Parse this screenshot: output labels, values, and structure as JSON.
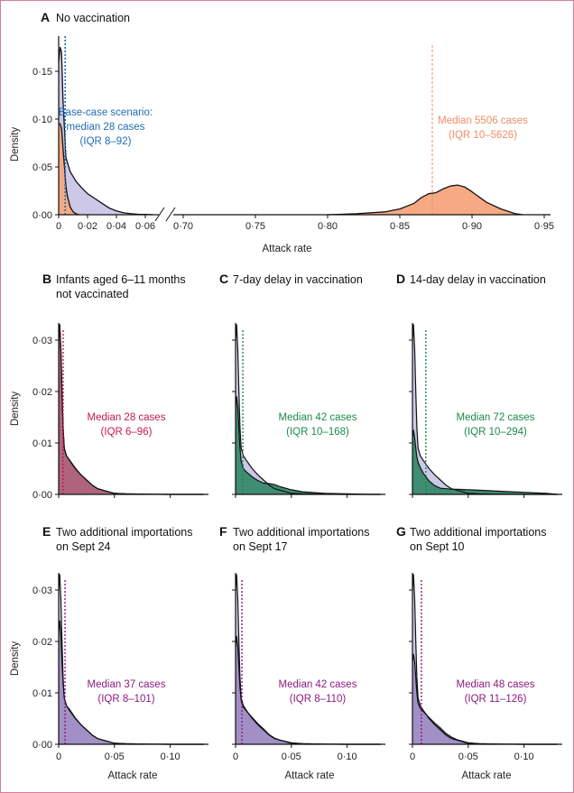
{
  "chart_data": [
    {
      "panel": "A",
      "type": "area",
      "letter": "A",
      "title_lines": [
        "No vaccination"
      ],
      "xlabel": "Attack rate",
      "ylabel": "Density",
      "yticks": [
        0,
        0.05,
        0.1,
        0.15
      ],
      "ytick_labels": [
        "0·00",
        "0·05",
        "0·10",
        "0·15"
      ],
      "xticks": [
        0,
        0.02,
        0.04,
        0.06,
        0.7,
        0.75,
        0.8,
        0.85,
        0.9,
        0.95
      ],
      "xtick_labels": [
        "0",
        "0·02",
        "0·04",
        "0·06",
        "0·70",
        "0·75",
        "0·80",
        "0·85",
        "0·90",
        "0·95"
      ],
      "axis_break": [
        0.065,
        0.69
      ],
      "ylim": [
        0,
        0.18
      ],
      "base": {
        "name": "Base-case scenario",
        "median": 0.0045,
        "label_lines": [
          "Base-case scenario:",
          "median 28 cases",
          "(IQR 8–92)"
        ],
        "x": [
          0,
          0.001,
          0.002,
          0.003,
          0.005,
          0.008,
          0.012,
          0.016,
          0.02,
          0.025,
          0.03,
          0.035,
          0.04,
          0.045,
          0.05,
          0.055,
          0.06,
          0.065
        ],
        "density": [
          0.16,
          0.175,
          0.17,
          0.12,
          0.06,
          0.045,
          0.035,
          0.028,
          0.022,
          0.017,
          0.012,
          0.007,
          0.004,
          0.002,
          0.001,
          0.0005,
          0.0003,
          0
        ]
      },
      "scenario": {
        "name": "No vaccination",
        "median": 0.8725,
        "label_lines": [
          "Median 5506 cases",
          "(IQR 10–5626)"
        ],
        "x": [
          0,
          0.001,
          0.002,
          0.003,
          0.004,
          0.005,
          0.006,
          0.008,
          0.01,
          0.012,
          0.014
        ],
        "density": [
          0.095,
          0.095,
          0.09,
          0.07,
          0.05,
          0.03,
          0.02,
          0.008,
          0.003,
          0.001,
          0
        ],
        "x_high": [
          0.8,
          0.82,
          0.84,
          0.85,
          0.86,
          0.865,
          0.87,
          0.875,
          0.88,
          0.885,
          0.89,
          0.895,
          0.9,
          0.91,
          0.92,
          0.93,
          0.935
        ],
        "density_high": [
          0,
          0.001,
          0.003,
          0.006,
          0.012,
          0.018,
          0.022,
          0.023,
          0.027,
          0.03,
          0.031,
          0.029,
          0.024,
          0.013,
          0.006,
          0.001,
          0
        ]
      },
      "colors": {
        "base_fill": "#cbc8e8",
        "scenario_fill": "#f6a983",
        "base_text": "#1f6db3",
        "scenario_text": "#f08d66",
        "base_median": "#1f6db3",
        "scenario_median": "#f08d66"
      }
    },
    {
      "panel": "B",
      "type": "area",
      "letter": "B",
      "title_lines": [
        "Infants aged 6–11 months",
        "not vaccinated"
      ],
      "ylabel": "Density",
      "xlabel": "",
      "yticks": [
        0,
        0.01,
        0.02,
        0.03
      ],
      "ytick_labels": [
        "0·00",
        "0·01",
        "0·02",
        "0·03"
      ],
      "xticks": [
        0,
        0.05,
        0.1
      ],
      "xtick_labels": [],
      "median": 0.004,
      "label_lines": [
        "Median 28 cases",
        "(IQR 6–96)"
      ],
      "scenario_density": [
        0.031,
        0.033,
        0.028,
        0.02,
        0.013,
        0.009,
        0.0075,
        0.0066,
        0.0051,
        0.0038,
        0.0028,
        0.0018,
        0.0011,
        0.0008,
        0.0002,
        0.0001,
        3e-05,
        0,
        0,
        0
      ],
      "colors": {
        "fill": "#b0647c",
        "text": "#c4184c"
      }
    },
    {
      "panel": "C",
      "type": "area",
      "letter": "C",
      "title_lines": [
        "7-day delay in vaccination"
      ],
      "ylabel": "",
      "xlabel": "",
      "yticks": [
        0,
        0.01,
        0.02,
        0.03
      ],
      "ytick_labels": [],
      "xticks": [
        0,
        0.05,
        0.1
      ],
      "xtick_labels": [],
      "median": 0.0065,
      "label_lines": [
        "Median 42 cases",
        "(IQR 10–168)"
      ],
      "scenario_density": [
        0.017,
        0.019,
        0.017,
        0.013,
        0.009,
        0.0065,
        0.005,
        0.0043,
        0.0034,
        0.0027,
        0.0022,
        0.0021,
        0.0019,
        0.0015,
        0.0009,
        0.0005,
        0.0002,
        0.0001,
        0,
        0
      ],
      "colors": {
        "fill": "#3f8d72",
        "text": "#1b8a4c"
      }
    },
    {
      "panel": "D",
      "type": "area",
      "letter": "D",
      "title_lines": [
        "14-day delay in vaccination"
      ],
      "ylabel": "",
      "xlabel": "",
      "yticks": [
        0,
        0.01,
        0.02,
        0.03
      ],
      "ytick_labels": [],
      "xticks": [
        0,
        0.05,
        0.1
      ],
      "xtick_labels": [],
      "median": 0.012,
      "label_lines": [
        "Median 72 cases",
        "(IQR 10–294)"
      ],
      "scenario_density": [
        0.011,
        0.0125,
        0.011,
        0.009,
        0.0073,
        0.0063,
        0.0052,
        0.004,
        0.0026,
        0.0017,
        0.0012,
        0.0011,
        0.001,
        0.001,
        0.0009,
        0.0008,
        0.0006,
        0.0004,
        0.0002,
        0
      ],
      "colors": {
        "fill": "#3f8d72",
        "text": "#1b8a4c"
      }
    },
    {
      "panel": "E",
      "type": "area",
      "letter": "E",
      "title_lines": [
        "Two additional importations",
        "on Sept 24"
      ],
      "ylabel": "Density",
      "xlabel": "Attack rate",
      "yticks": [
        0,
        0.01,
        0.02,
        0.03
      ],
      "ytick_labels": [
        "0·00",
        "0·01",
        "0·02",
        "0·03"
      ],
      "xticks": [
        0,
        0.05,
        0.1
      ],
      "xtick_labels": [
        "0",
        "0·05",
        "0·10"
      ],
      "median": 0.0057,
      "label_lines": [
        "Median 37 cases",
        "(IQR 8–101)"
      ],
      "scenario_density": [
        0.022,
        0.024,
        0.021,
        0.016,
        0.012,
        0.009,
        0.0075,
        0.0067,
        0.0051,
        0.0038,
        0.0028,
        0.0018,
        0.0011,
        0.0008,
        0.0002,
        0.0001,
        3e-05,
        0,
        0,
        0
      ],
      "colors": {
        "fill": "#a28fc6",
        "text": "#8c1a82"
      }
    },
    {
      "panel": "F",
      "type": "area",
      "letter": "F",
      "title_lines": [
        "Two additional importations",
        "on Sept 17"
      ],
      "ylabel": "",
      "xlabel": "Attack rate",
      "yticks": [
        0,
        0.01,
        0.02,
        0.03
      ],
      "ytick_labels": [],
      "xticks": [
        0,
        0.05,
        0.1
      ],
      "xtick_labels": [
        "0",
        "0·05",
        "0·10"
      ],
      "median": 0.0057,
      "label_lines": [
        "Median 42 cases",
        "(IQR 8–110)"
      ],
      "scenario_density": [
        0.019,
        0.021,
        0.019,
        0.015,
        0.011,
        0.0085,
        0.0072,
        0.0064,
        0.0052,
        0.004,
        0.003,
        0.0019,
        0.0012,
        0.0008,
        0.0003,
        0.0001,
        3e-05,
        0,
        0,
        0
      ],
      "colors": {
        "fill": "#a28fc6",
        "text": "#8c1a82"
      }
    },
    {
      "panel": "G",
      "type": "area",
      "letter": "G",
      "title_lines": [
        "Two additional importations",
        "on Sept 10"
      ],
      "ylabel": "",
      "xlabel": "Attack rate",
      "yticks": [
        0,
        0.01,
        0.02,
        0.03
      ],
      "ytick_labels": [],
      "xticks": [
        0,
        0.05,
        0.1
      ],
      "xtick_labels": [
        "0",
        "0·05",
        "0·10"
      ],
      "median": 0.008,
      "label_lines": [
        "Median 48 cases",
        "(IQR 11–126)"
      ],
      "scenario_density": [
        0.016,
        0.0175,
        0.016,
        0.013,
        0.01,
        0.008,
        0.007,
        0.0063,
        0.0052,
        0.0041,
        0.0032,
        0.0021,
        0.0014,
        0.0009,
        0.0003,
        0.0001,
        3e-05,
        0,
        0,
        0
      ],
      "colors": {
        "fill": "#a28fc6",
        "text": "#8c1a82"
      }
    }
  ],
  "small_panel_grid": {
    "x": [
      0,
      0.001,
      0.002,
      0.003,
      0.004,
      0.005,
      0.007,
      0.01,
      0.015,
      0.02,
      0.025,
      0.03,
      0.035,
      0.04,
      0.05,
      0.06,
      0.08,
      0.1,
      0.12,
      0.13
    ],
    "base_density": [
      0.03,
      0.033,
      0.028,
      0.02,
      0.013,
      0.009,
      0.0075,
      0.0065,
      0.005,
      0.0038,
      0.0028,
      0.0018,
      0.0011,
      0.0008,
      0.0002,
      0.0001,
      3e-05,
      0,
      0,
      0
    ],
    "base_fill": "#cbc8e8"
  }
}
